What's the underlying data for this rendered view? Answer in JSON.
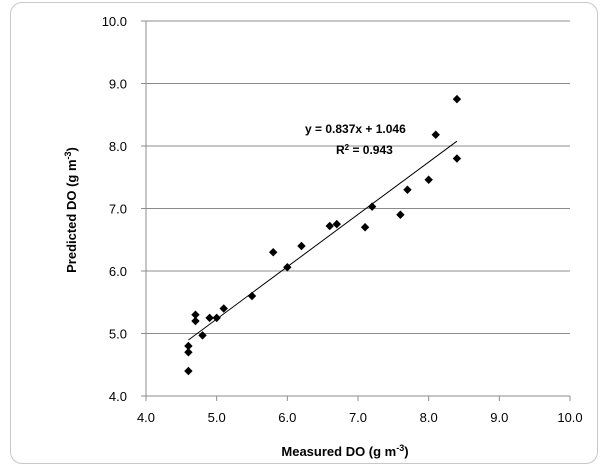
{
  "chart_data": {
    "type": "scatter",
    "title": "",
    "xlabel": "Measured DO (g m",
    "xlabel_sup": "-3",
    "xlabel_end": ")",
    "ylabel": "Predicted DO  (g m",
    "ylabel_sup": "-3",
    "ylabel_end": ")",
    "xlim": [
      4.0,
      10.0
    ],
    "ylim": [
      4.0,
      10.0
    ],
    "xticks": [
      "4.0",
      "5.0",
      "6.0",
      "7.0",
      "8.0",
      "9.0",
      "10.0"
    ],
    "yticks": [
      "4.0",
      "5.0",
      "6.0",
      "7.0",
      "8.0",
      "9.0",
      "10.0"
    ],
    "grid": "horizontal",
    "marker_color": "#000000",
    "trendline": {
      "slope": 0.837,
      "intercept": 1.046,
      "x_range": [
        4.6,
        8.4
      ],
      "equation_label": "y = 0.837x + 1.046",
      "r2_prefix": "R",
      "r2_sup": "2",
      "r2_suffix": " = 0.943"
    },
    "points": [
      {
        "x": 4.6,
        "y": 4.4
      },
      {
        "x": 4.6,
        "y": 4.7
      },
      {
        "x": 4.6,
        "y": 4.8
      },
      {
        "x": 4.7,
        "y": 5.2
      },
      {
        "x": 4.7,
        "y": 5.3
      },
      {
        "x": 4.8,
        "y": 4.97
      },
      {
        "x": 4.9,
        "y": 5.25
      },
      {
        "x": 5.0,
        "y": 5.25
      },
      {
        "x": 5.1,
        "y": 5.4
      },
      {
        "x": 5.5,
        "y": 5.6
      },
      {
        "x": 5.8,
        "y": 6.3
      },
      {
        "x": 6.0,
        "y": 6.06
      },
      {
        "x": 6.2,
        "y": 6.4
      },
      {
        "x": 6.6,
        "y": 6.72
      },
      {
        "x": 6.7,
        "y": 6.75
      },
      {
        "x": 7.1,
        "y": 6.7
      },
      {
        "x": 7.2,
        "y": 7.03
      },
      {
        "x": 7.6,
        "y": 6.9
      },
      {
        "x": 7.7,
        "y": 7.3
      },
      {
        "x": 8.0,
        "y": 7.46
      },
      {
        "x": 8.1,
        "y": 8.18
      },
      {
        "x": 8.4,
        "y": 7.8
      },
      {
        "x": 8.4,
        "y": 8.75
      }
    ]
  }
}
